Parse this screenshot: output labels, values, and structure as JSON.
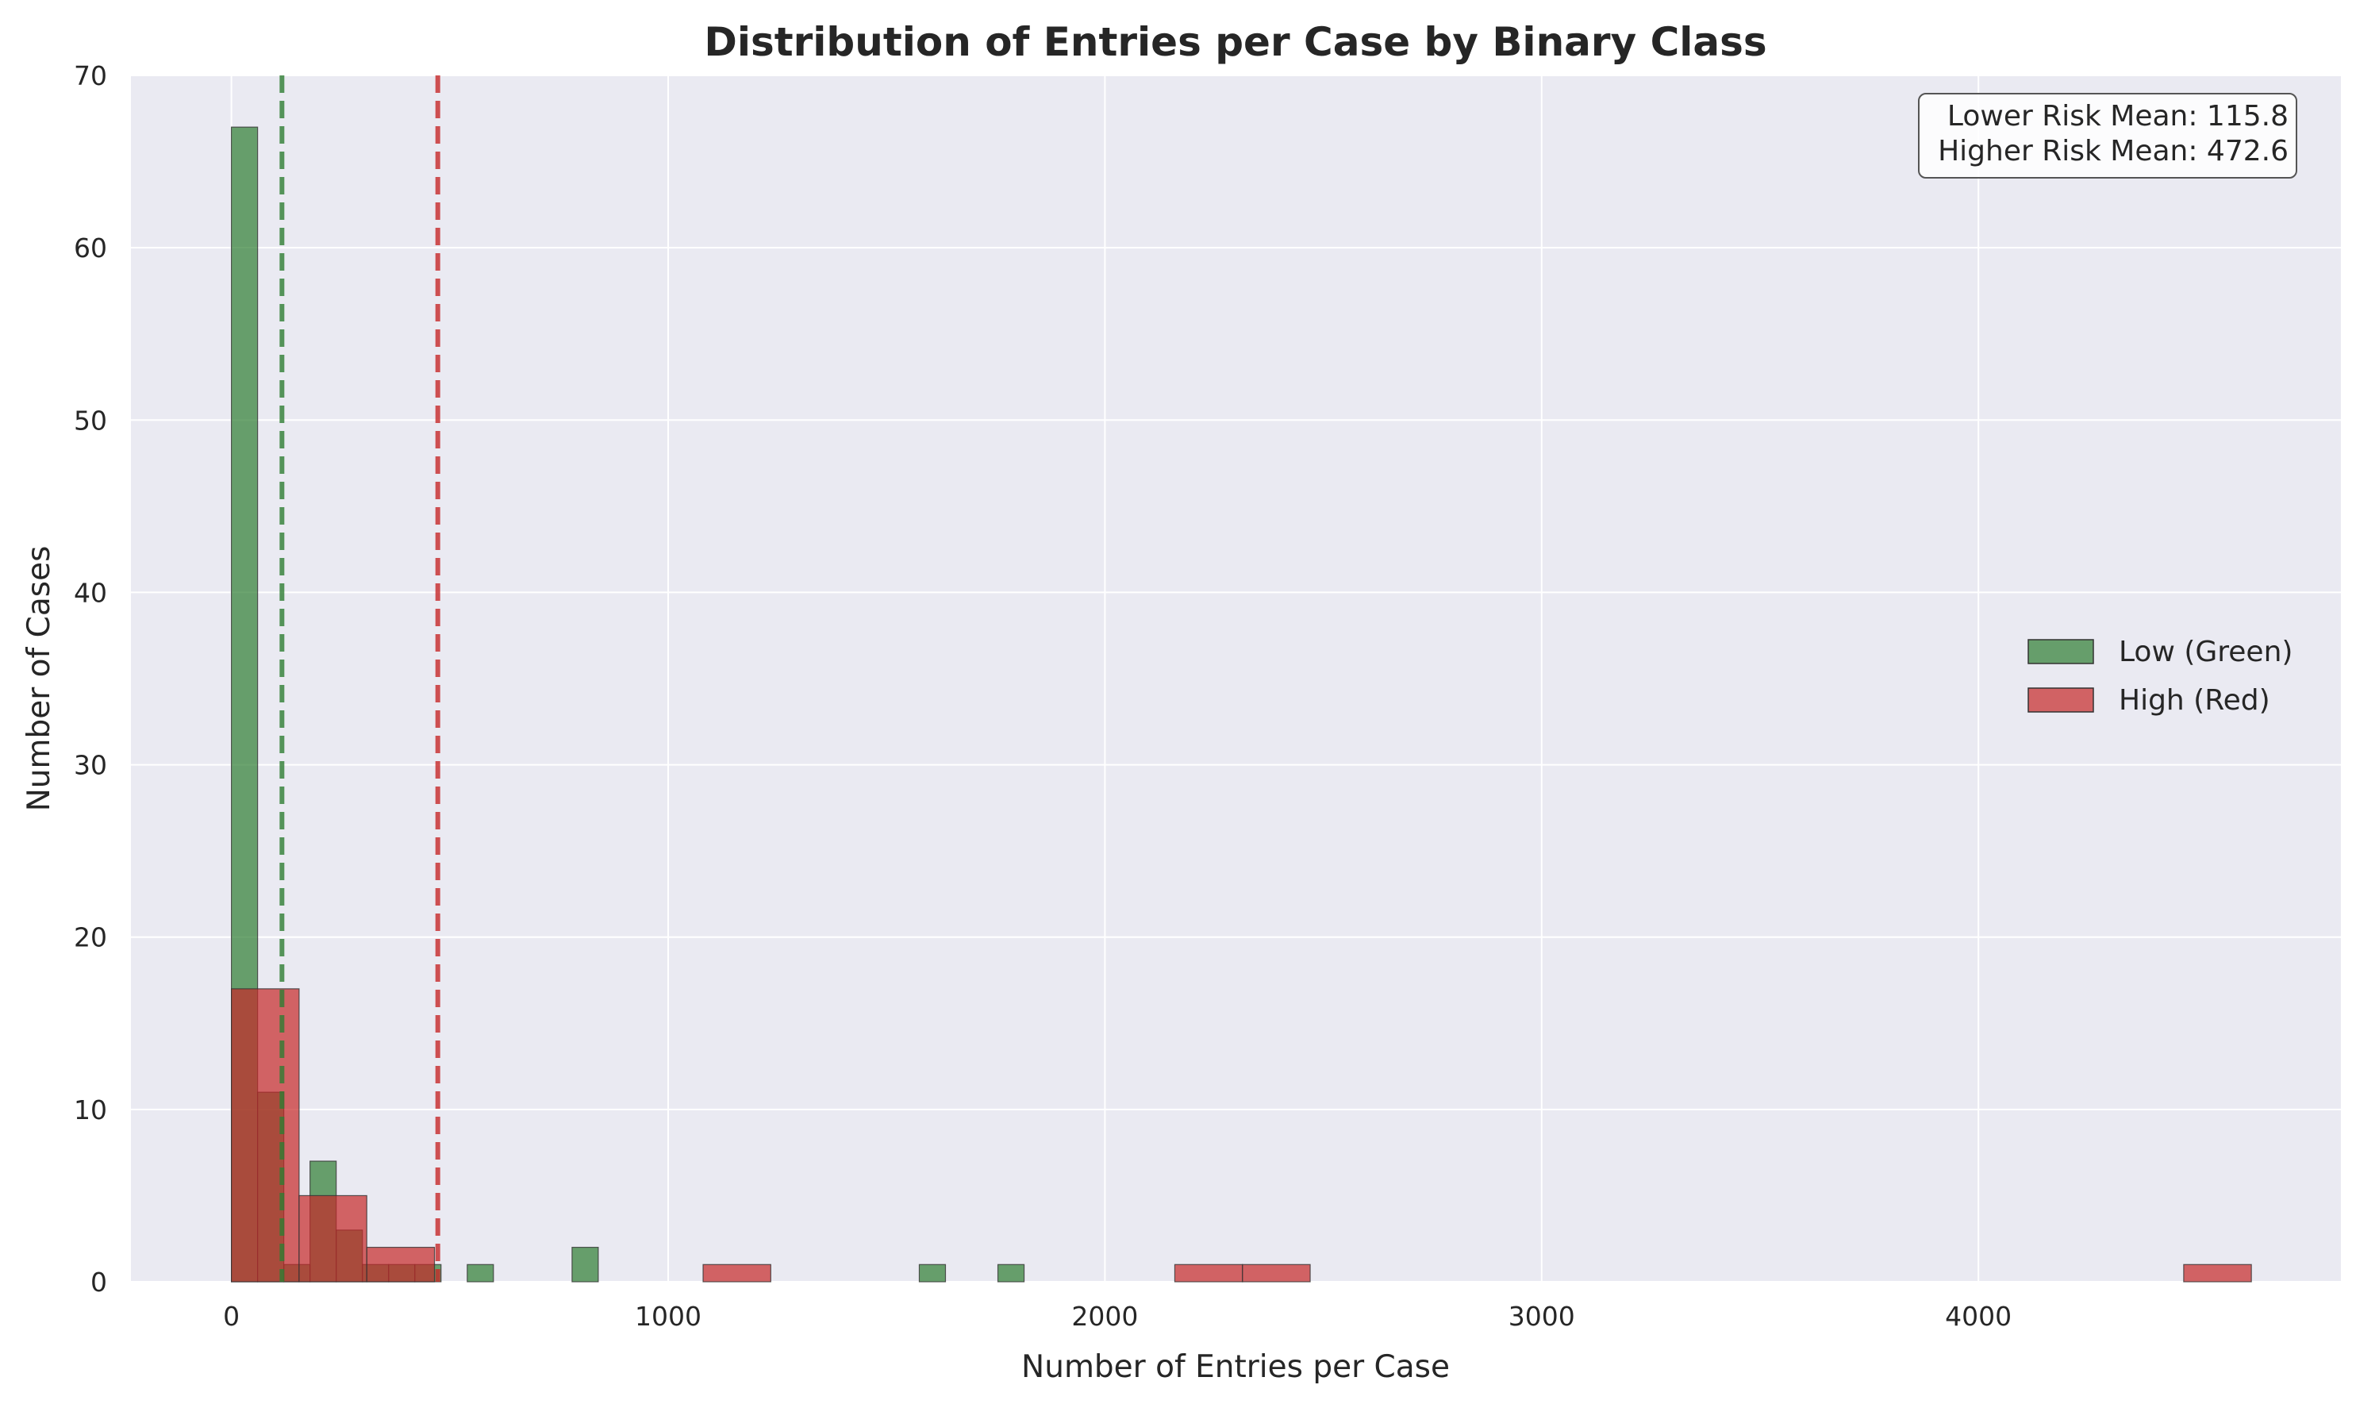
{
  "chart_data": {
    "type": "bar",
    "subtype": "histogram",
    "title": "Distribution of Entries per Case by Binary Class",
    "xlabel": "Number of Entries per Case",
    "ylabel": "Number of Cases",
    "xlim": [
      -230,
      4830
    ],
    "ylim": [
      0,
      70
    ],
    "xticks": [
      0,
      1000,
      2000,
      3000,
      4000
    ],
    "yticks": [
      0,
      10,
      20,
      30,
      40,
      50,
      60,
      70
    ],
    "grid": true,
    "legend_position": "center-right",
    "series": [
      {
        "name": "Low (Green)",
        "color": "#2e7d32",
        "bins": [
          {
            "x0": 0,
            "x1": 60,
            "count": 67
          },
          {
            "x0": 60,
            "x1": 120,
            "count": 11
          },
          {
            "x0": 120,
            "x1": 180,
            "count": 1
          },
          {
            "x0": 180,
            "x1": 240,
            "count": 7
          },
          {
            "x0": 240,
            "x1": 300,
            "count": 3
          },
          {
            "x0": 300,
            "x1": 360,
            "count": 1
          },
          {
            "x0": 360,
            "x1": 420,
            "count": 1
          },
          {
            "x0": 420,
            "x1": 480,
            "count": 1
          },
          {
            "x0": 540,
            "x1": 600,
            "count": 1
          },
          {
            "x0": 780,
            "x1": 840,
            "count": 2
          },
          {
            "x0": 1575,
            "x1": 1635,
            "count": 1
          },
          {
            "x0": 1755,
            "x1": 1815,
            "count": 1
          }
        ],
        "mean": 115.8
      },
      {
        "name": "High (Red)",
        "color": "#c62828",
        "bins": [
          {
            "x0": 0,
            "x1": 155,
            "count": 17
          },
          {
            "x0": 155,
            "x1": 310,
            "count": 5
          },
          {
            "x0": 310,
            "x1": 465,
            "count": 2
          },
          {
            "x0": 1080,
            "x1": 1235,
            "count": 1
          },
          {
            "x0": 2160,
            "x1": 2315,
            "count": 1
          },
          {
            "x0": 2315,
            "x1": 2470,
            "count": 1
          },
          {
            "x0": 4470,
            "x1": 4625,
            "count": 1
          }
        ],
        "mean": 472.6
      }
    ],
    "annotation": {
      "lines": [
        "Lower Risk Mean: 115.8",
        "Higher Risk Mean: 472.6"
      ]
    }
  }
}
